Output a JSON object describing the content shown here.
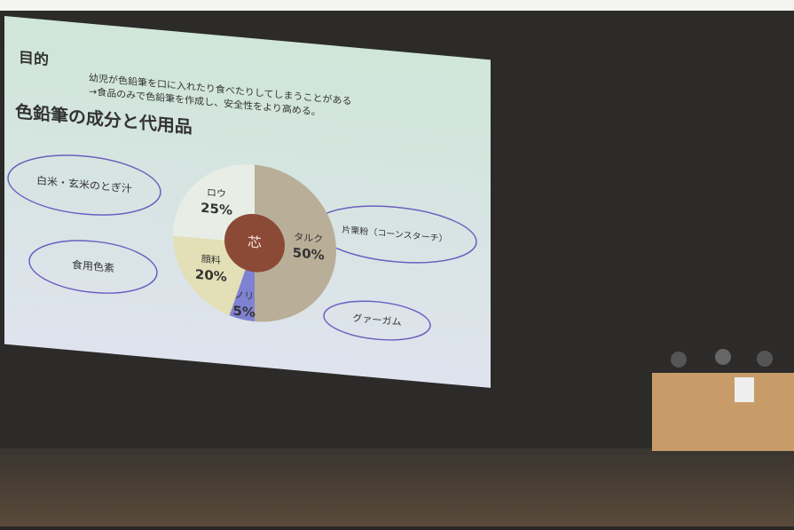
{
  "chart_data": {
    "type": "pie",
    "heading": "目的",
    "subtitle": [
      "幼児が色鉛筆を口に入れたり食べたりしてしまうことがある",
      "→食品のみで色鉛筆を作成し、安全性をより高める。"
    ],
    "title": "色鉛筆の成分と代用品",
    "center_label": "芯",
    "categories": [
      "タルク",
      "ノリ",
      "顔料",
      "ロウ"
    ],
    "values": [
      50,
      5,
      20,
      25
    ],
    "value_labels": [
      "50%",
      "5%",
      "20%",
      "25%"
    ],
    "colors": [
      "#b9ae98",
      "#7f82d2",
      "#e3dfb6",
      "#e8eee6"
    ],
    "annotations": [
      "白米・玄米のとぎ汁",
      "片栗粉（コーンスターチ）",
      "食用色素",
      "グァーガム"
    ]
  }
}
